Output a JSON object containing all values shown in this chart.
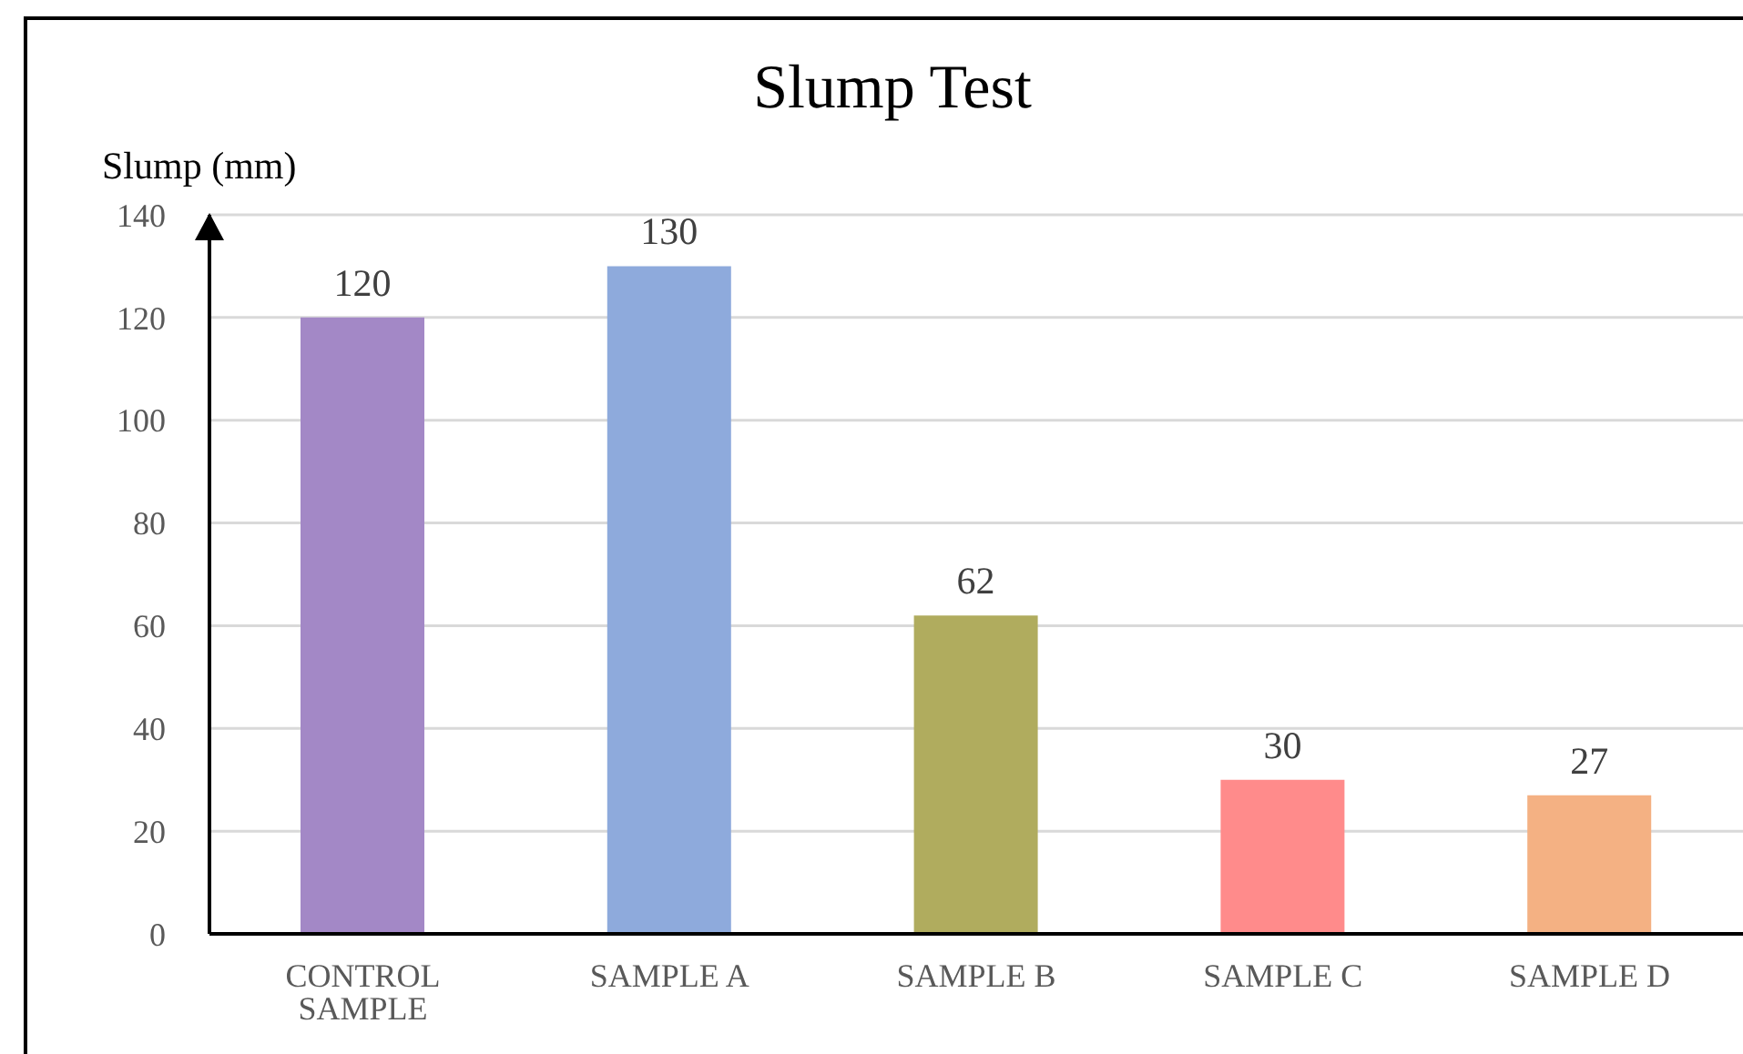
{
  "chart_data": {
    "type": "bar",
    "title": "Slump Test",
    "ylabel": "Slump (mm)",
    "categories": [
      "CONTROL SAMPLE",
      "SAMPLE A",
      "SAMPLE B",
      "SAMPLE C",
      "SAMPLE D"
    ],
    "values": [
      120,
      130,
      62,
      30,
      27
    ],
    "colors": [
      "#a388c6",
      "#8eaadc",
      "#b0ac5e",
      "#ff8b8b",
      "#f4b183"
    ],
    "ylim": [
      0,
      140
    ],
    "yticks": [
      0,
      20,
      40,
      60,
      80,
      100,
      120,
      140
    ],
    "grid": "y",
    "data_labels": true
  }
}
